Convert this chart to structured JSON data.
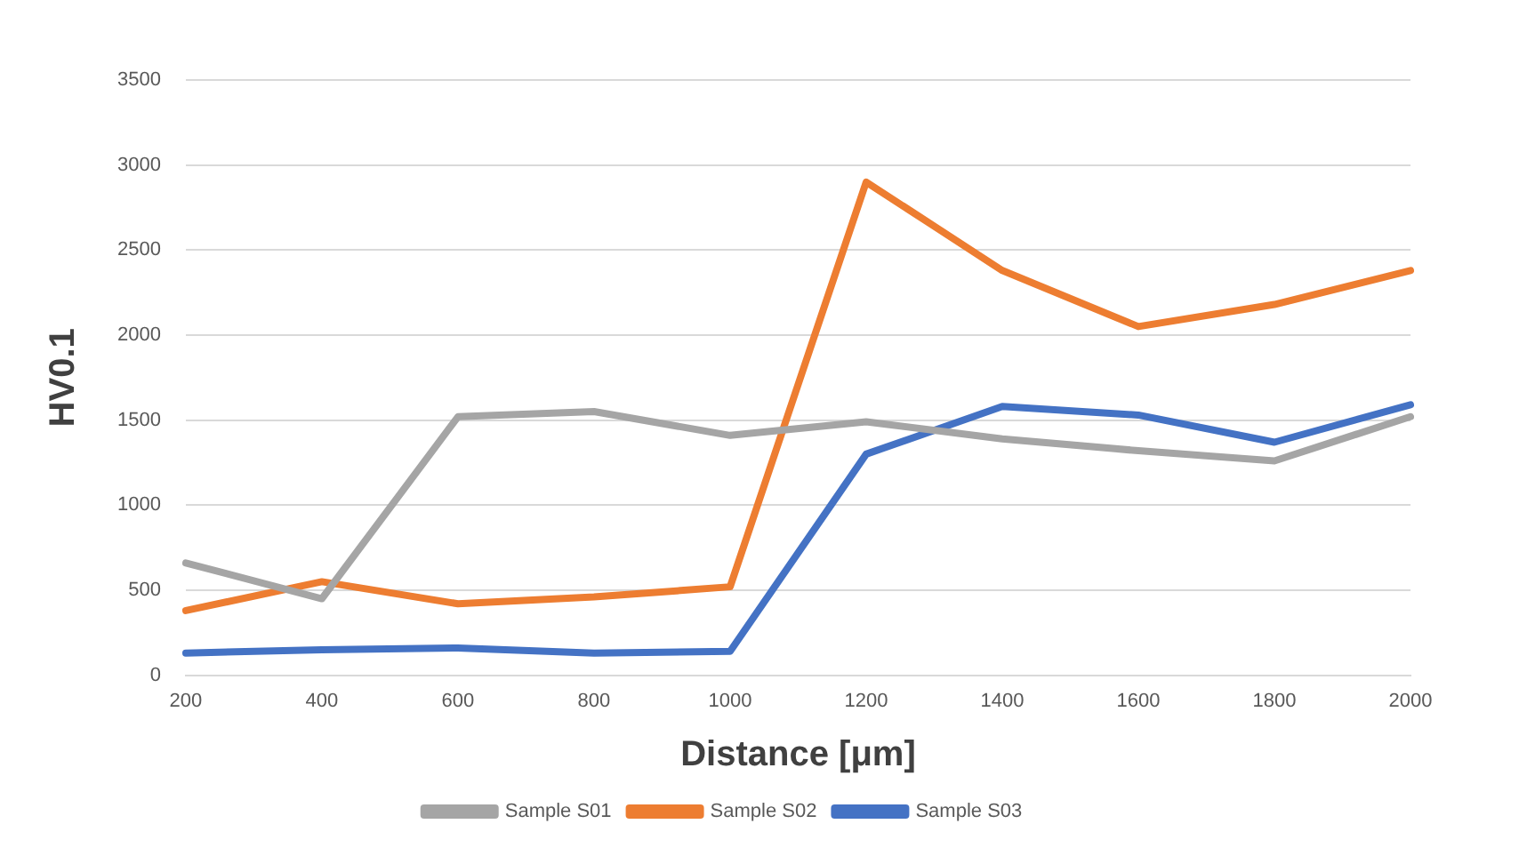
{
  "chart_data": {
    "type": "line",
    "xlabel": "Distance [μm]",
    "ylabel": "HV0.1",
    "categories": [
      "200",
      "400",
      "600",
      "800",
      "1000",
      "1200",
      "1400",
      "1600",
      "1800",
      "2000"
    ],
    "series": [
      {
        "name": "Sample S01",
        "color": "#a5a5a5",
        "values": [
          660,
          450,
          1520,
          1550,
          1410,
          1490,
          1390,
          1320,
          1260,
          1520
        ]
      },
      {
        "name": "Sample S02",
        "color": "#ed7d31",
        "values": [
          380,
          550,
          420,
          460,
          520,
          2900,
          2380,
          2050,
          2180,
          2380
        ]
      },
      {
        "name": "Sample S03",
        "color": "#4472c4",
        "values": [
          130,
          150,
          160,
          130,
          140,
          1300,
          1580,
          1530,
          1370,
          1590
        ]
      }
    ],
    "ylim": [
      0,
      3500
    ],
    "yticks": [
      0,
      500,
      1000,
      1500,
      2000,
      2500,
      3000,
      3500
    ],
    "grid": "y",
    "legend": "bottom",
    "marker": "none",
    "line_style": "solid"
  }
}
